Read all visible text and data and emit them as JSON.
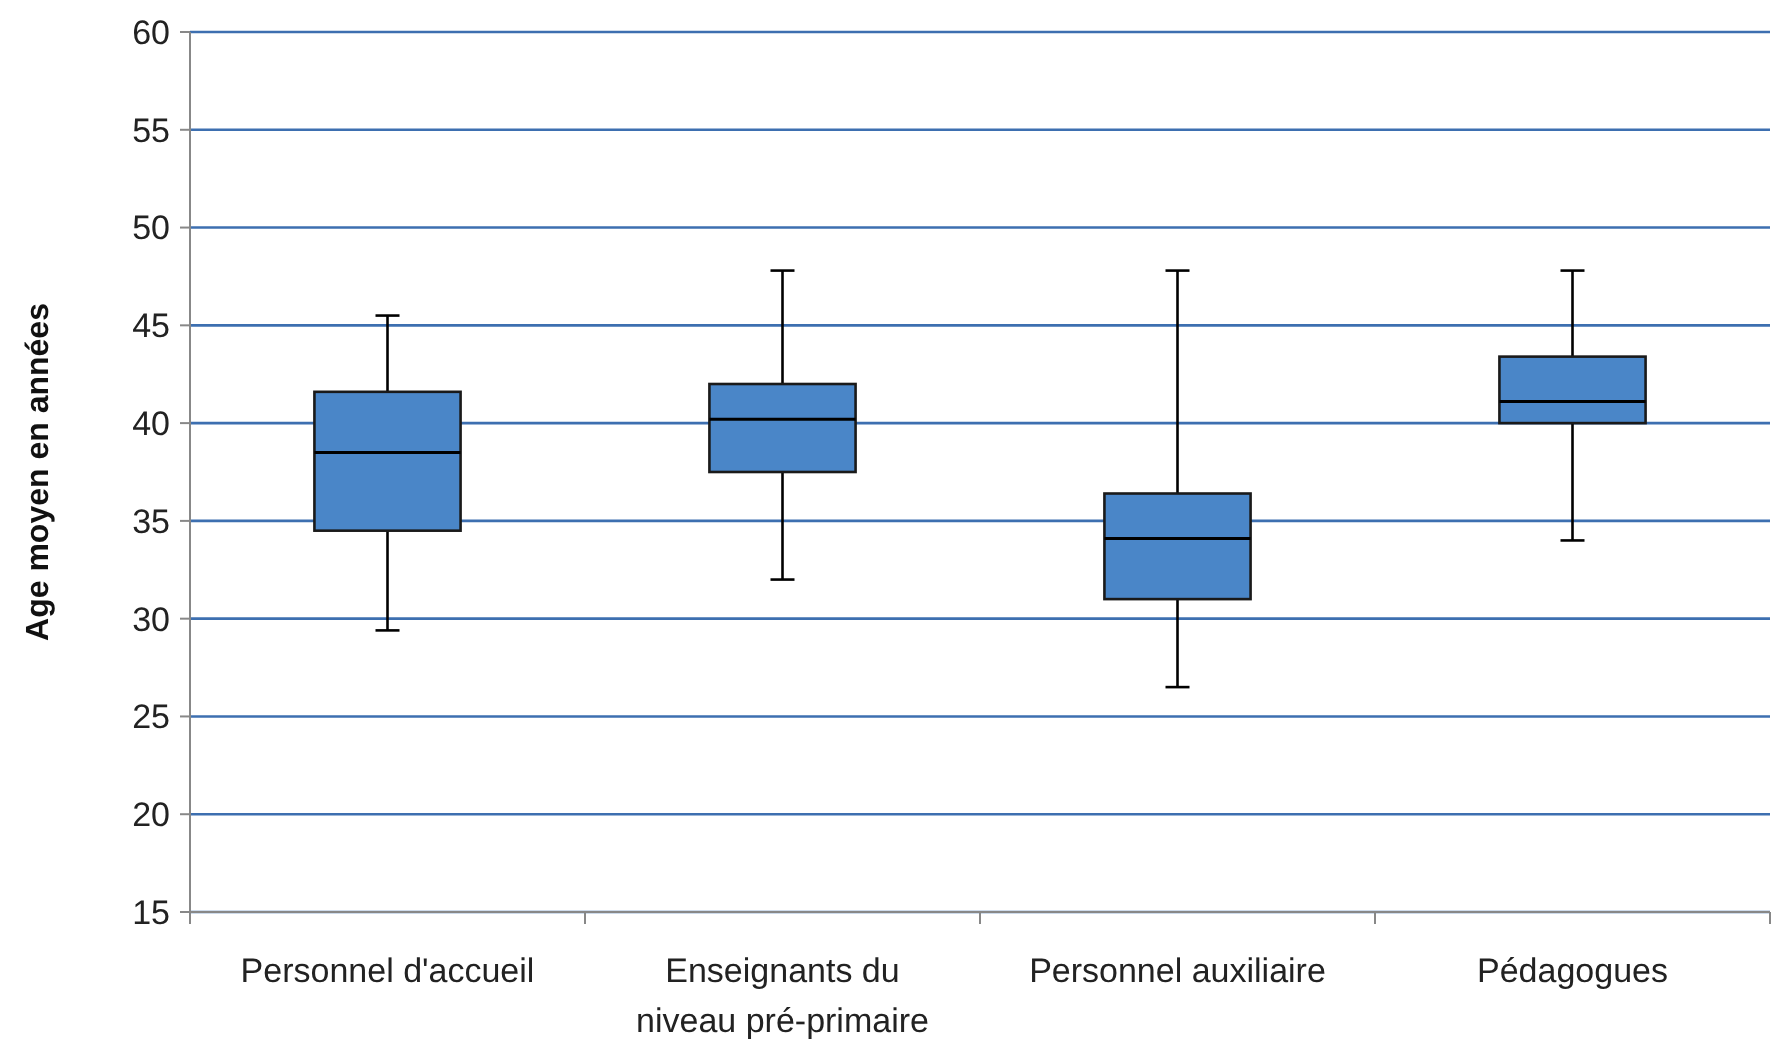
{
  "chart_data": {
    "type": "box",
    "ylabel": "Age moyen en années",
    "categories": [
      "Personnel d'accueil",
      "Enseignants du niveau pré-primaire",
      "Personnel auxiliaire",
      "Pédagogues"
    ],
    "boxes": [
      {
        "low": 29.4,
        "q1": 34.5,
        "median": 38.5,
        "q3": 41.6,
        "high": 45.5
      },
      {
        "low": 32,
        "q1": 37.5,
        "median": 40.2,
        "q3": 42,
        "high": 47.8
      },
      {
        "low": 26.5,
        "q1": 31,
        "median": 34.1,
        "q3": 36.4,
        "high": 47.8
      },
      {
        "low": 34,
        "q1": 40,
        "median": 41.1,
        "q3": 43.4,
        "high": 47.8
      }
    ],
    "color": "#4a86c8",
    "ylim": [
      15,
      60
    ],
    "yticks": [
      15,
      20,
      25,
      30,
      35,
      40,
      45,
      50,
      55,
      60
    ],
    "grid": "y"
  }
}
